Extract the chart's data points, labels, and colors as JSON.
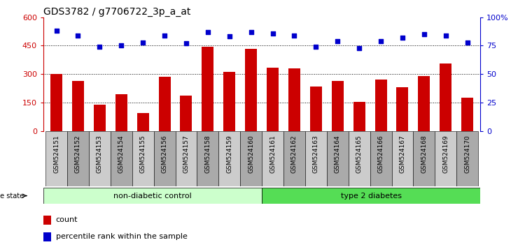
{
  "title": "GDS3782 / g7706722_3p_a_at",
  "samples": [
    "GSM524151",
    "GSM524152",
    "GSM524153",
    "GSM524154",
    "GSM524155",
    "GSM524156",
    "GSM524157",
    "GSM524158",
    "GSM524159",
    "GSM524160",
    "GSM524161",
    "GSM524162",
    "GSM524163",
    "GSM524164",
    "GSM524165",
    "GSM524166",
    "GSM524167",
    "GSM524168",
    "GSM524169",
    "GSM524170"
  ],
  "counts": [
    300,
    265,
    140,
    195,
    95,
    285,
    185,
    445,
    310,
    435,
    335,
    330,
    235,
    265,
    155,
    270,
    230,
    290,
    355,
    175
  ],
  "percentiles": [
    88,
    84,
    74,
    75,
    78,
    84,
    77,
    87,
    83,
    87,
    86,
    84,
    74,
    79,
    73,
    79,
    82,
    85,
    84,
    78
  ],
  "non_diabetic_count": 10,
  "type2_diabetes_count": 10,
  "ylim_left": [
    0,
    600
  ],
  "ylim_right": [
    0,
    100
  ],
  "yticks_left": [
    0,
    150,
    300,
    450,
    600
  ],
  "yticks_right": [
    0,
    25,
    50,
    75,
    100
  ],
  "bar_color": "#cc0000",
  "dot_color": "#0000cc",
  "non_diabetic_color": "#ccffcc",
  "type2_color": "#55dd55",
  "tick_label_bg_even": "#cccccc",
  "tick_label_bg_odd": "#aaaaaa",
  "right_axis_color": "#0000cc",
  "left_axis_color": "#cc0000",
  "bar_width": 0.55,
  "dot_size": 20
}
